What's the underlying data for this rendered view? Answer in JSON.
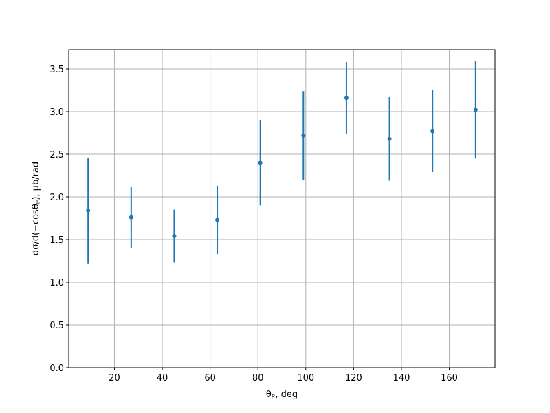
{
  "chart_data": {
    "type": "errorbar",
    "xlabel": "θₚ, deg",
    "ylabel": "dσ/d(−cosθₚ), μb/rad",
    "x": [
      9,
      27,
      45,
      63,
      81,
      99,
      117,
      135,
      153,
      171
    ],
    "values": [
      1.84,
      1.76,
      1.54,
      1.73,
      2.4,
      2.72,
      3.16,
      2.68,
      2.77,
      3.02
    ],
    "errors": [
      0.62,
      0.36,
      0.31,
      0.4,
      0.5,
      0.52,
      0.42,
      0.49,
      0.48,
      0.57
    ],
    "color": "#1f77b4",
    "xlim": [
      0.9,
      179.1
    ],
    "ylim": [
      0,
      3.726
    ],
    "xticks": [
      20,
      40,
      60,
      80,
      100,
      120,
      140,
      160
    ],
    "yticks": [
      {
        "value": 0,
        "label": "0.0"
      },
      {
        "value": 0.5,
        "label": "0.5"
      },
      {
        "value": 1,
        "label": "1.0"
      },
      {
        "value": 1.5,
        "label": "1.5"
      },
      {
        "value": 2,
        "label": "2.0"
      },
      {
        "value": 2.5,
        "label": "2.5"
      },
      {
        "value": 3,
        "label": "3.0"
      },
      {
        "value": 3.5,
        "label": "3.5"
      }
    ],
    "grid": true
  }
}
